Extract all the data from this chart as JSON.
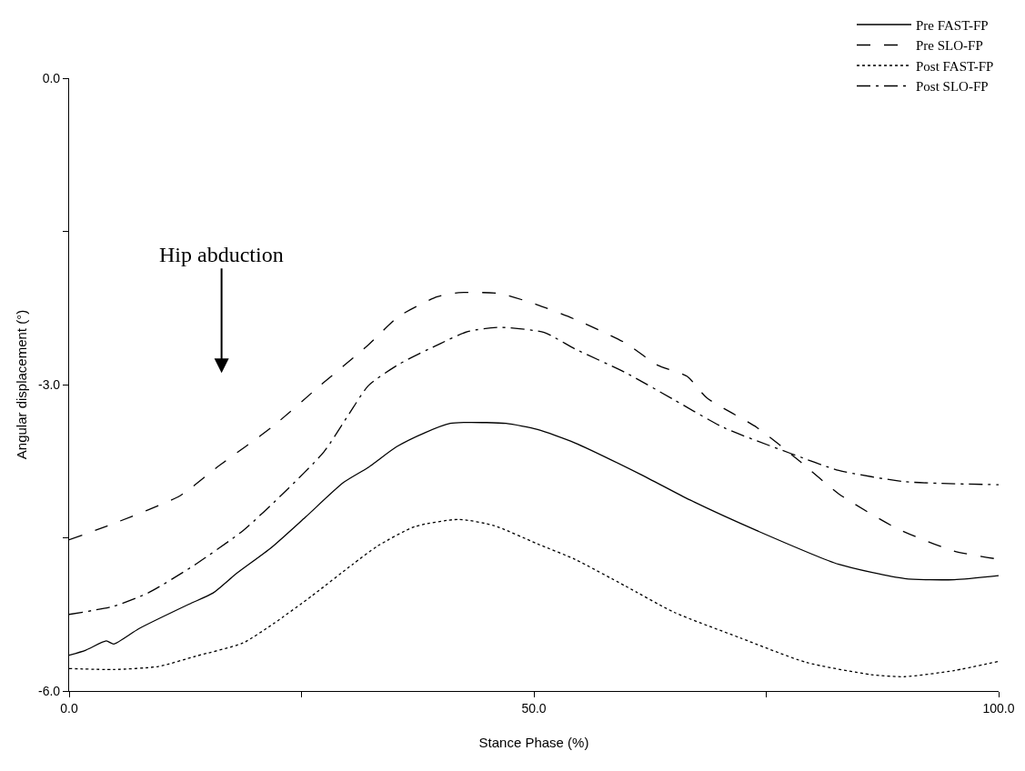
{
  "chart_data": {
    "type": "line",
    "xlabel": "Stance Phase (%)",
    "ylabel": "Angular displacement (°)",
    "xlim": [
      0,
      100
    ],
    "xticks": [
      {
        "value": 0,
        "label": "0.0"
      },
      {
        "value": 25,
        "label": null
      },
      {
        "value": 50,
        "label": "50.0"
      },
      {
        "value": 75,
        "label": null
      },
      {
        "value": 100,
        "label": "100.0"
      }
    ],
    "ylim": [
      -6,
      0
    ],
    "yticks": [
      {
        "value": -6,
        "label": "-6.0"
      },
      {
        "value": -4.5,
        "label": null
      },
      {
        "value": -3,
        "label": "-3.0"
      },
      {
        "value": -1.5,
        "label": null
      },
      {
        "value": 0,
        "label": "0.0"
      }
    ],
    "legend": "top right",
    "marker": "none",
    "annotations": [
      "Hip abduction"
    ],
    "series": [
      {
        "name": "Pre FAST-FP",
        "color": "#000000",
        "line_style": "solid",
        "x": [
          0,
          1.8,
          4.0,
          4.8,
          7.5,
          12.9,
          15.5,
          18,
          21.7,
          25.4,
          29.5,
          32.2,
          35.2,
          38.3,
          41,
          42.9,
          47,
          50.4,
          54.4,
          61.5,
          66.8,
          74,
          82.8,
          89.9,
          95.2,
          100
        ],
        "values": [
          -5.65,
          -5.6,
          -5.51,
          -5.54,
          -5.39,
          -5.15,
          -5.04,
          -4.85,
          -4.6,
          -4.3,
          -3.96,
          -3.81,
          -3.61,
          -3.47,
          -3.38,
          -3.37,
          -3.38,
          -3.44,
          -3.57,
          -3.88,
          -4.13,
          -4.43,
          -4.76,
          -4.9,
          -4.91,
          -4.87
        ]
      },
      {
        "name": "Pre SLO-FP",
        "color": "#000000",
        "line_style": "longdash",
        "x": [
          0,
          4.8,
          11.9,
          15.9,
          21.9,
          27,
          32.2,
          35.5,
          39.6,
          41.9,
          46.4,
          50.4,
          54.4,
          59.8,
          63.3,
          66.5,
          68.6,
          74,
          78.6,
          82.8,
          89.1,
          95.2,
          100
        ],
        "values": [
          -4.52,
          -4.36,
          -4.09,
          -3.81,
          -3.41,
          -3.01,
          -2.61,
          -2.33,
          -2.14,
          -2.1,
          -2.11,
          -2.22,
          -2.36,
          -2.59,
          -2.81,
          -2.92,
          -3.13,
          -3.42,
          -3.75,
          -4.07,
          -4.41,
          -4.63,
          -4.71
        ]
      },
      {
        "name": "Post FAST-FP",
        "color": "#000000",
        "line_style": "dotted",
        "x": [
          0,
          4.8,
          9.6,
          13.6,
          18.7,
          22,
          26.1,
          30.5,
          33.2,
          37.2,
          41.9,
          45.7,
          50.4,
          54.4,
          59.8,
          65.1,
          72.2,
          79.3,
          86.3,
          89.9,
          95.2,
          100
        ],
        "values": [
          -5.78,
          -5.79,
          -5.76,
          -5.66,
          -5.53,
          -5.34,
          -5.07,
          -4.76,
          -4.58,
          -4.39,
          -4.32,
          -4.38,
          -4.56,
          -4.71,
          -4.97,
          -5.23,
          -5.48,
          -5.72,
          -5.84,
          -5.86,
          -5.8,
          -5.71
        ]
      },
      {
        "name": "Post SLO-FP",
        "color": "#000000",
        "line_style": "dashdot",
        "x": [
          0,
          4.8,
          8.5,
          13.6,
          18.7,
          23.1,
          27.4,
          30.1,
          32.2,
          35.5,
          39.9,
          42.9,
          46.4,
          51.1,
          54.4,
          59.8,
          65.1,
          70.4,
          77.5,
          82.8,
          89.9,
          100
        ],
        "values": [
          -5.25,
          -5.17,
          -5.04,
          -4.76,
          -4.43,
          -4.06,
          -3.66,
          -3.29,
          -3.01,
          -2.8,
          -2.6,
          -2.48,
          -2.44,
          -2.49,
          -2.65,
          -2.88,
          -3.15,
          -3.42,
          -3.67,
          -3.84,
          -3.95,
          -3.98
        ]
      }
    ]
  }
}
